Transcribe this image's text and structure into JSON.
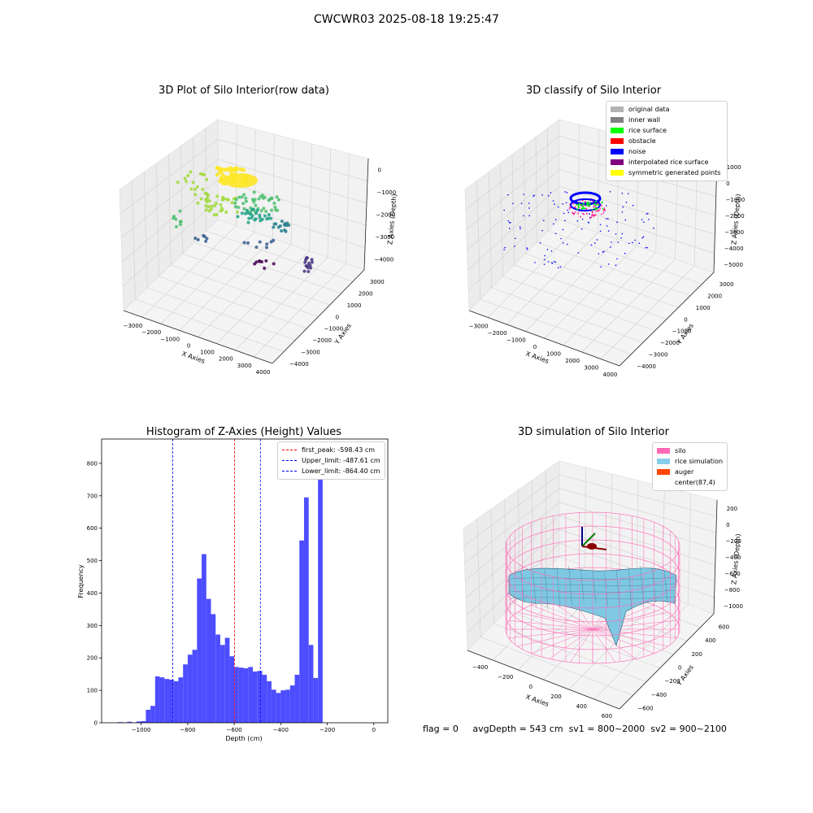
{
  "suptitle": "CWCWR03 2025-08-18 19:25:47",
  "footer": {
    "flag": "flag = 0",
    "avg": "avgDepth = 543 cm",
    "sv1": "sv1 = 800~2000",
    "sv2": "sv2 = 900~2100"
  },
  "chart_data": [
    {
      "type": "scatter",
      "subtype": "3d",
      "title": "3D Plot of Silo Interior(row data)",
      "xlabel": "X Axies",
      "ylabel": "Y Axies",
      "zlabel": "Z Axies (Depth)",
      "x_ticks": [
        "−3000",
        "−2000",
        "−1000",
        "0",
        "1000",
        "2000",
        "3000",
        "4000"
      ],
      "y_ticks": [
        "3000",
        "2000",
        "1000",
        "0",
        "−1000",
        "−2000",
        "−3000",
        "−4000"
      ],
      "z_ticks": [
        "0",
        "−1000",
        "−2000",
        "−3000",
        "−4000"
      ],
      "colormap": "viridis"
    },
    {
      "type": "scatter",
      "subtype": "3d",
      "title": "3D classify of Silo Interior",
      "xlabel": "X Axies",
      "ylabel": "Y Axies",
      "zlabel": "Z Axies (Depth)",
      "x_ticks": [
        "−3000",
        "−2000",
        "−1000",
        "0",
        "1000",
        "2000",
        "3000",
        "4000"
      ],
      "y_ticks": [
        "3000",
        "2000",
        "1000",
        "0",
        "−1000",
        "−2000",
        "−3000",
        "−4000"
      ],
      "z_ticks": [
        "1000",
        "0",
        "−1000",
        "−2000",
        "−3000",
        "−4000",
        "−5000"
      ],
      "legend": [
        {
          "label": "original data",
          "color": "#b3b3b3"
        },
        {
          "label": "inner wall",
          "color": "#808080"
        },
        {
          "label": "rice surface",
          "color": "#00ff00"
        },
        {
          "label": "obstacle",
          "color": "#ff0000"
        },
        {
          "label": "noise",
          "color": "#0000ff"
        },
        {
          "label": "interpolated rice surface",
          "color": "#800080"
        },
        {
          "label": "symmetric generated points",
          "color": "#ffff00"
        }
      ]
    },
    {
      "type": "bar",
      "subtype": "histogram",
      "title": "Histogram of Z-Axies (Height) Values",
      "xlabel": "Depth (cm)",
      "ylabel": "Frequency",
      "xlim": [
        -1170,
        60
      ],
      "ylim": [
        0,
        875
      ],
      "x_ticks": [
        "−1000",
        "−800",
        "−600",
        "−400",
        "−200",
        "0"
      ],
      "y_ticks": [
        "0",
        "100",
        "200",
        "300",
        "400",
        "500",
        "600",
        "700",
        "800"
      ],
      "bin_start": -1160,
      "bin_width": 20,
      "values": [
        0,
        0,
        0,
        2,
        1,
        3,
        1,
        4,
        5,
        40,
        52,
        143,
        140,
        135,
        133,
        128,
        140,
        180,
        210,
        225,
        445,
        520,
        382,
        335,
        272,
        240,
        262,
        205,
        172,
        170,
        168,
        172,
        158,
        160,
        148,
        128,
        102,
        92,
        100,
        102,
        115,
        148,
        562,
        695,
        240,
        138,
        818
      ],
      "bar_color": "#4d4dff",
      "vlines": [
        {
          "x": -598.43,
          "label": "first_peak: -598.43 cm",
          "color": "#ff0000"
        },
        {
          "x": -487.61,
          "label": "Upper_limit: -487.61 cm",
          "color": "#0000ff"
        },
        {
          "x": -864.4,
          "label": "Lower_limit: -864.40 cm",
          "color": "#0000ff"
        }
      ]
    },
    {
      "type": "surface",
      "subtype": "3d",
      "title": "3D simulation of Silo Interior",
      "xlabel": "X Axies",
      "ylabel": "Y Axies",
      "zlabel": "Z Axies (Depth)",
      "x_ticks": [
        "−400",
        "−200",
        "0",
        "200",
        "400",
        "600"
      ],
      "y_ticks": [
        "600",
        "400",
        "200",
        "0",
        "−200",
        "−400",
        "−600"
      ],
      "z_ticks": [
        "200",
        "0",
        "−200",
        "−400",
        "−600",
        "−800",
        "−1000"
      ],
      "legend": [
        {
          "label": "silo",
          "color": "#ff69b4"
        },
        {
          "label": "rice simulation",
          "color": "#87ceeb"
        },
        {
          "label": "auger",
          "color": "#ff4500"
        },
        {
          "label": "center(87,4)",
          "color": ""
        }
      ]
    }
  ]
}
